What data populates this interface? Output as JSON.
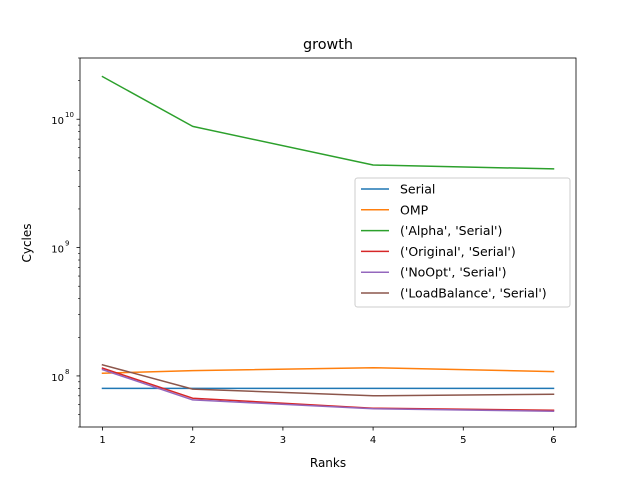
{
  "chart_data": {
    "type": "line",
    "title": "growth",
    "xlabel": "Ranks",
    "ylabel": "Cycles",
    "x": [
      1,
      2,
      4,
      6
    ],
    "xlim": [
      0.75,
      6.25
    ],
    "ylim": [
      40000000,
      30000000000
    ],
    "yscale": "log",
    "xticks": [
      "1",
      "2",
      "3",
      "4",
      "5",
      "6"
    ],
    "yticks": [
      {
        "base": "10",
        "exp": "8",
        "value": 100000000
      },
      {
        "base": "10",
        "exp": "9",
        "value": 1000000000
      },
      {
        "base": "10",
        "exp": "10",
        "value": 10000000000
      }
    ],
    "grid": false,
    "legend_position": "center-right",
    "series": [
      {
        "name": "Serial",
        "color": "#1f77b4",
        "values": [
          80000000,
          80000000,
          80000000,
          80000000
        ]
      },
      {
        "name": "OMP",
        "color": "#ff7f0e",
        "values": [
          105000000,
          110000000,
          116000000,
          108000000
        ]
      },
      {
        "name": "('Alpha', 'Serial')",
        "color": "#2ca02c",
        "values": [
          21500000000,
          8800000000,
          4400000000,
          4100000000
        ]
      },
      {
        "name": "('Original', 'Serial')",
        "color": "#d62728",
        "values": [
          115000000,
          67000000,
          56000000,
          54000000
        ]
      },
      {
        "name": "('NoOpt', 'Serial')",
        "color": "#9467bd",
        "values": [
          112000000,
          65000000,
          55500000,
          53000000
        ]
      },
      {
        "name": "('LoadBalance', 'Serial')",
        "color": "#8c564b",
        "values": [
          122000000,
          79000000,
          70000000,
          72000000
        ]
      }
    ]
  }
}
